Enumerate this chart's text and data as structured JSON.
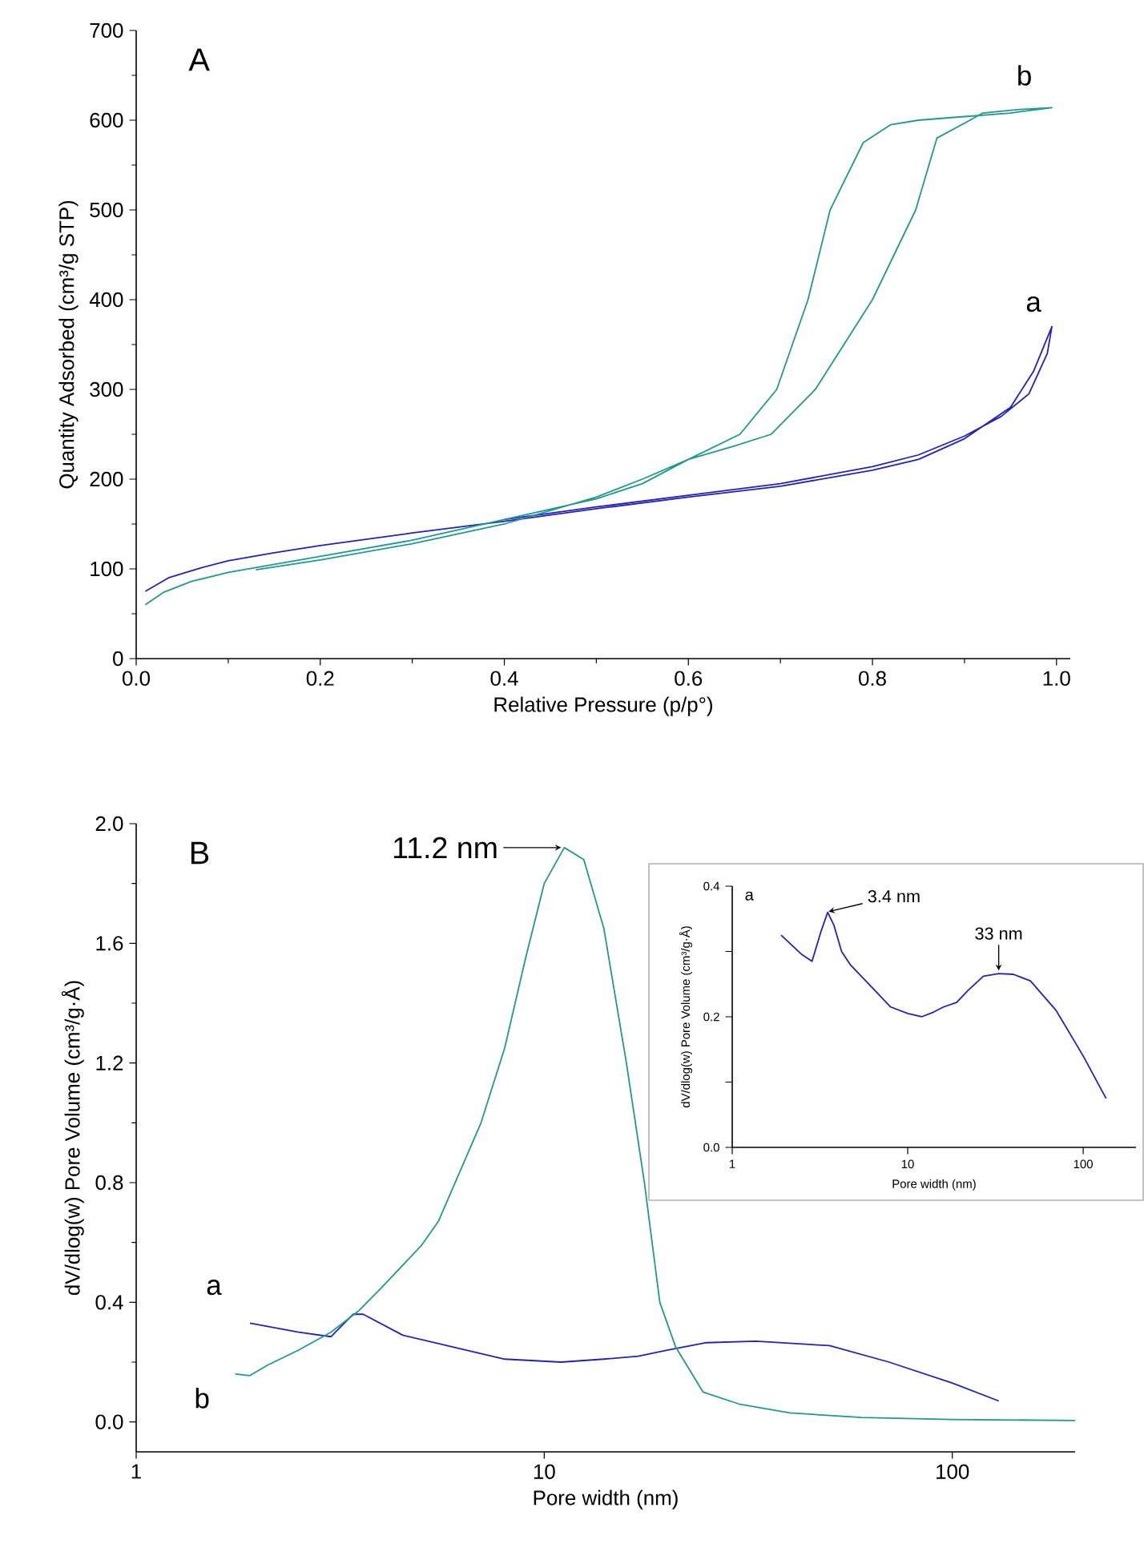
{
  "chart_data": [
    {
      "type": "line",
      "title": "A",
      "xlabel": "Relative Pressure (p/p°)",
      "ylabel": "Quantity Adsorbed (cm³/g STP)",
      "xlim": [
        0,
        1.015
      ],
      "ylim": [
        0,
        700
      ],
      "xticks": [
        {
          "value": 0,
          "label": "0.0"
        },
        {
          "value": 0.2,
          "label": "0.2"
        },
        {
          "value": 0.4,
          "label": "0.4"
        },
        {
          "value": 0.6,
          "label": "0.6"
        },
        {
          "value": 0.8,
          "label": "0.8"
        },
        {
          "value": 1.0,
          "label": "1.0"
        }
      ],
      "yticks": [
        0,
        100,
        200,
        300,
        400,
        500,
        600,
        700
      ],
      "series": [
        {
          "name": "a",
          "color": "#2222bb",
          "x": [
            0.01,
            0.035,
            0.07,
            0.1,
            0.15,
            0.2,
            0.3,
            0.4,
            0.5,
            0.6,
            0.7,
            0.8,
            0.85,
            0.9,
            0.95,
            0.975,
            0.995,
            0.99,
            0.97,
            0.94,
            0.9,
            0.85,
            0.8,
            0.7,
            0.6,
            0.5,
            0.4
          ],
          "values": [
            75,
            90,
            101,
            109,
            118,
            126,
            140,
            153,
            167,
            180,
            192,
            210,
            222,
            245,
            280,
            320,
            370,
            340,
            295,
            270,
            248,
            227,
            214,
            195,
            182,
            169,
            155
          ]
        },
        {
          "name": "b",
          "color": "#1f9a8c",
          "x": [
            0.01,
            0.03,
            0.06,
            0.1,
            0.15,
            0.2,
            0.3,
            0.5,
            0.55,
            0.6,
            0.656,
            0.696,
            0.73,
            0.754,
            0.79,
            0.82,
            0.85,
            0.9,
            0.95,
            0.995,
            0.96,
            0.92,
            0.906,
            0.87,
            0.847,
            0.8,
            0.738,
            0.69,
            0.65,
            0.6,
            0.55,
            0.5,
            0.4,
            0.3,
            0.2,
            0.13
          ],
          "values": [
            60,
            74,
            86,
            96,
            105,
            114,
            132,
            178,
            195,
            222,
            250,
            300,
            400,
            500,
            575,
            595,
            600,
            604,
            608,
            614,
            612,
            608,
            600,
            580,
            500,
            400,
            300,
            250,
            237,
            222,
            200,
            180,
            150,
            128,
            110,
            99
          ]
        }
      ]
    },
    {
      "type": "line",
      "title": "B",
      "xlabel": "Pore width (nm)",
      "ylabel": "dV/dlog(w) Pore Volume (cm³/g·Å)",
      "log": "x",
      "xlim": [
        1,
        200
      ],
      "ylim": [
        -0.1,
        2.0
      ],
      "xticks": [
        1,
        10,
        100
      ],
      "yticks": [
        {
          "value": 0,
          "label": "0.0"
        },
        {
          "value": 0.4,
          "label": "0.4"
        },
        {
          "value": 0.8,
          "label": "0.8"
        },
        {
          "value": 1.2,
          "label": "1.2"
        },
        {
          "value": 1.6,
          "label": "1.6"
        },
        {
          "value": 2.0,
          "label": "2.0"
        }
      ],
      "series": [
        {
          "name": "a",
          "color": "#2222bb",
          "x": [
            1.9,
            2.5,
            3.0,
            3.4,
            3.6,
            4.5,
            6,
            8,
            11,
            14,
            17,
            20,
            25,
            33,
            50,
            70,
            100,
            130
          ],
          "values": [
            0.33,
            0.3,
            0.285,
            0.36,
            0.36,
            0.29,
            0.25,
            0.21,
            0.2,
            0.21,
            0.22,
            0.24,
            0.265,
            0.27,
            0.255,
            0.2,
            0.13,
            0.07
          ]
        },
        {
          "name": "b",
          "color": "#1f9a8c",
          "x": [
            1.75,
            1.9,
            2.1,
            2.5,
            3.0,
            3.5,
            4.0,
            5,
            5.5,
            7,
            8,
            9,
            10,
            11.2,
            12.5,
            14,
            15.9,
            17.6,
            19.2,
            21,
            24.5,
            30,
            40,
            60,
            100,
            200
          ],
          "values": [
            0.16,
            0.155,
            0.19,
            0.24,
            0.3,
            0.37,
            0.45,
            0.59,
            0.67,
            1.0,
            1.25,
            1.55,
            1.8,
            1.92,
            1.88,
            1.65,
            1.2,
            0.8,
            0.4,
            0.25,
            0.1,
            0.06,
            0.03,
            0.015,
            0.008,
            0.005
          ]
        }
      ],
      "annotations": [
        {
          "text": "11.2 nm",
          "x": 11.2,
          "y": 1.92
        }
      ]
    },
    {
      "type": "line",
      "xlabel": "Pore width (nm)",
      "ylabel": "dV/dlog(w) Pore Volume (cm³/g·Å)",
      "log": "x",
      "xlim": [
        1,
        200
      ],
      "ylim": [
        0,
        0.4
      ],
      "xticks": [
        1,
        10,
        100
      ],
      "yticks": [
        {
          "value": 0,
          "label": "0.0"
        },
        {
          "value": 0.1,
          "label": null
        },
        {
          "value": 0.2,
          "label": "0.2"
        },
        {
          "value": 0.3,
          "label": null
        },
        {
          "value": 0.4,
          "label": "0.4"
        }
      ],
      "series": [
        {
          "name": "a",
          "color": "#2222bb",
          "x": [
            1.9,
            2.5,
            2.85,
            3.2,
            3.5,
            3.8,
            4.2,
            4.7,
            6,
            8,
            10,
            12,
            14,
            16,
            19,
            22,
            27,
            33,
            40,
            50,
            70,
            100,
            135
          ],
          "values": [
            0.325,
            0.295,
            0.285,
            0.33,
            0.36,
            0.34,
            0.3,
            0.28,
            0.25,
            0.215,
            0.205,
            0.2,
            0.207,
            0.215,
            0.222,
            0.24,
            0.262,
            0.266,
            0.265,
            0.255,
            0.21,
            0.14,
            0.075
          ]
        }
      ],
      "annotations": [
        {
          "text": "3.4 nm",
          "x": 3.4,
          "y": 0.36
        },
        {
          "text": "33 nm",
          "x": 33,
          "y": 0.266
        }
      ]
    }
  ]
}
